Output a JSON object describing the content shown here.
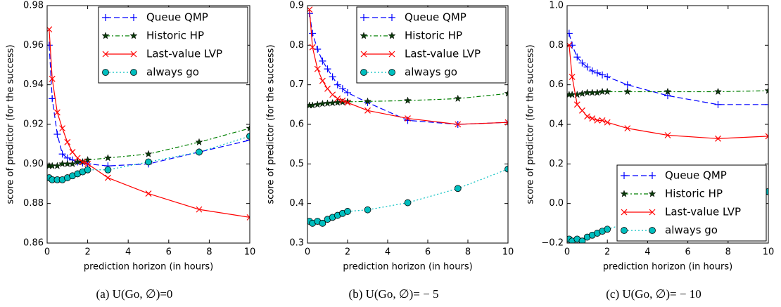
{
  "chart_data": [
    {
      "type": "line",
      "caption": "(a) U(Go, ∅)=0",
      "x_label": "prediction horizon (in hours)",
      "y_label": "score of predictor (for the success)",
      "x": [
        0.1,
        0.25,
        0.5,
        0.75,
        1,
        1.25,
        1.5,
        1.75,
        2,
        3,
        5,
        7.5,
        10
      ],
      "xlim": [
        0,
        10
      ],
      "xticks": [
        0,
        2,
        4,
        6,
        8,
        10
      ],
      "ylim": [
        0.86,
        0.98
      ],
      "yticks": [
        0.86,
        0.88,
        {
          "value": 0.9,
          "label": "0.90"
        },
        0.92,
        0.94,
        0.96,
        0.98
      ],
      "legend": "upper right",
      "series": [
        {
          "name": "Queue QMP",
          "color": "#0000ff",
          "marker": "plus",
          "linestyle": "dashed",
          "values": [
            0.96,
            0.933,
            0.915,
            0.905,
            0.903,
            0.902,
            0.901,
            0.9005,
            0.9,
            0.899,
            0.9,
            0.906,
            0.912
          ]
        },
        {
          "name": "Historic HP",
          "color": "#007f00",
          "marker": "star",
          "linestyle": "dashdot",
          "values": [
            0.899,
            0.899,
            0.899,
            0.9,
            0.9,
            0.9,
            0.901,
            0.901,
            0.902,
            0.903,
            0.905,
            0.911,
            0.918
          ]
        },
        {
          "name": "Last-value LVP",
          "color": "#ff0000",
          "marker": "x",
          "linestyle": "solid",
          "values": [
            0.968,
            0.943,
            0.926,
            0.918,
            0.911,
            0.906,
            0.903,
            0.901,
            0.9,
            0.893,
            0.885,
            0.877,
            0.873
          ]
        },
        {
          "name": "always go",
          "color": "#00bfbf",
          "marker": "circle",
          "linestyle": "dotted",
          "values": [
            0.893,
            0.892,
            0.892,
            0.892,
            0.893,
            0.894,
            0.895,
            0.896,
            0.897,
            0.897,
            0.901,
            0.906,
            0.914
          ]
        }
      ]
    },
    {
      "type": "line",
      "caption": "(b) U(Go, ∅)= − 5",
      "x_label": "prediction horizon (in hours)",
      "y_label": "score of predictor (for the success)",
      "x": [
        0.1,
        0.25,
        0.5,
        0.75,
        1,
        1.25,
        1.5,
        1.75,
        2,
        3,
        5,
        7.5,
        10
      ],
      "xlim": [
        0,
        10
      ],
      "xticks": [
        0,
        2,
        4,
        6,
        8,
        10
      ],
      "ylim": [
        0.3,
        0.9
      ],
      "yticks": [
        0.3,
        0.4,
        0.5,
        0.6,
        0.7,
        0.8,
        0.9
      ],
      "legend": "upper right",
      "series": [
        {
          "name": "Queue QMP",
          "color": "#0000ff",
          "marker": "plus",
          "linestyle": "dashed",
          "values": [
            0.88,
            0.83,
            0.79,
            0.76,
            0.74,
            0.72,
            0.7,
            0.69,
            0.68,
            0.655,
            0.61,
            0.6,
            0.605
          ]
        },
        {
          "name": "Historic HP",
          "color": "#007f00",
          "marker": "star",
          "linestyle": "dashdot",
          "values": [
            0.648,
            0.648,
            0.65,
            0.652,
            0.653,
            0.654,
            0.655,
            0.656,
            0.657,
            0.658,
            0.66,
            0.665,
            0.678
          ]
        },
        {
          "name": "Last-value LVP",
          "color": "#ff0000",
          "marker": "x",
          "linestyle": "solid",
          "values": [
            0.89,
            0.795,
            0.74,
            0.71,
            0.69,
            0.675,
            0.665,
            0.66,
            0.655,
            0.635,
            0.615,
            0.6,
            0.605
          ]
        },
        {
          "name": "always go",
          "color": "#00bfbf",
          "marker": "circle",
          "linestyle": "dotted",
          "values": [
            0.355,
            0.35,
            0.355,
            0.35,
            0.36,
            0.365,
            0.37,
            0.375,
            0.38,
            0.384,
            0.402,
            0.438,
            0.487
          ]
        }
      ]
    },
    {
      "type": "line",
      "caption": "(c) U(Go, ∅)= − 10",
      "x_label": "prediction horizon (in hours)",
      "y_label": "score of predictor (for the success)",
      "x": [
        0.1,
        0.25,
        0.5,
        0.75,
        1,
        1.25,
        1.5,
        1.75,
        2,
        3,
        5,
        7.5,
        10
      ],
      "xlim": [
        0,
        10
      ],
      "xticks": [
        0,
        2,
        4,
        6,
        8,
        10
      ],
      "ylim": [
        -0.2,
        1.0
      ],
      "yticks": [
        {
          "value": -0.2,
          "label": "−0.2"
        },
        {
          "value": 0,
          "label": "0.0"
        },
        0.2,
        0.4,
        0.6,
        0.8,
        {
          "value": 1.0,
          "label": "1.0"
        }
      ],
      "legend": "lower right",
      "series": [
        {
          "name": "Queue QMP",
          "color": "#0000ff",
          "marker": "plus",
          "linestyle": "dashed",
          "values": [
            0.86,
            0.8,
            0.74,
            0.71,
            0.69,
            0.67,
            0.66,
            0.65,
            0.64,
            0.6,
            0.545,
            0.5,
            0.5
          ]
        },
        {
          "name": "Historic HP",
          "color": "#007f00",
          "marker": "star",
          "linestyle": "dashdot",
          "values": [
            0.55,
            0.55,
            0.55,
            0.555,
            0.56,
            0.56,
            0.56,
            0.565,
            0.565,
            0.565,
            0.565,
            0.565,
            0.57
          ]
        },
        {
          "name": "Last-value LVP",
          "color": "#ff0000",
          "marker": "x",
          "linestyle": "solid",
          "values": [
            0.8,
            0.64,
            0.5,
            0.47,
            0.44,
            0.43,
            0.42,
            0.42,
            0.41,
            0.38,
            0.345,
            0.328,
            0.34
          ]
        },
        {
          "name": "always go",
          "color": "#00bfbf",
          "marker": "circle",
          "linestyle": "dotted",
          "values": [
            -0.18,
            -0.19,
            -0.18,
            -0.19,
            -0.17,
            -0.16,
            -0.15,
            -0.14,
            -0.13,
            -0.1,
            -0.05,
            0,
            0.06
          ]
        }
      ]
    }
  ]
}
